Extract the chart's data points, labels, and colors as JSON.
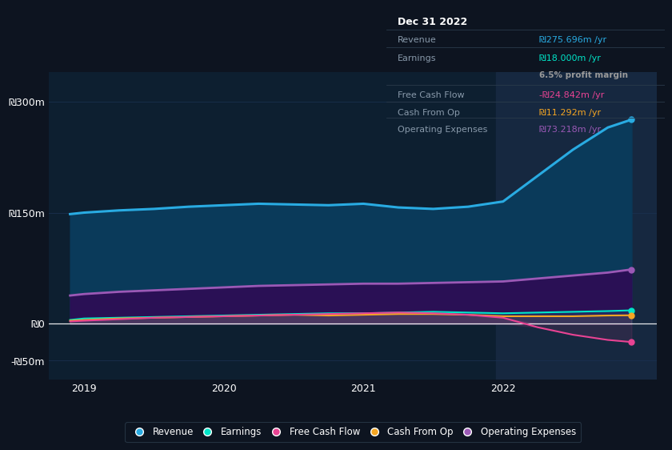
{
  "background_color": "#0d1420",
  "plot_bg_color": "#0d1f30",
  "grid_color": "#1a3050",
  "years": [
    2018.9,
    2019.0,
    2019.25,
    2019.5,
    2019.75,
    2020.0,
    2020.25,
    2020.5,
    2020.75,
    2021.0,
    2021.25,
    2021.5,
    2021.75,
    2022.0,
    2022.25,
    2022.5,
    2022.75,
    2022.92
  ],
  "revenue": [
    148,
    150,
    153,
    155,
    158,
    160,
    162,
    161,
    160,
    162,
    157,
    155,
    158,
    165,
    200,
    235,
    265,
    275.696
  ],
  "earnings": [
    5,
    7,
    8,
    9,
    10,
    11,
    12,
    13,
    14,
    14,
    15,
    16,
    15,
    14,
    15,
    16,
    17,
    18.0
  ],
  "free_cash_flow": [
    3,
    4,
    6,
    8,
    9,
    10,
    11,
    12,
    13,
    14,
    15,
    14,
    12,
    8,
    -5,
    -15,
    -22,
    -24.842
  ],
  "cash_from_op": [
    4,
    5,
    7,
    8,
    9,
    10,
    11,
    12,
    11,
    12,
    13,
    13,
    12,
    10,
    10,
    10,
    11,
    11.292
  ],
  "operating_expenses": [
    38,
    40,
    43,
    45,
    47,
    49,
    51,
    52,
    53,
    54,
    54,
    55,
    56,
    57,
    61,
    65,
    69,
    73.218
  ],
  "revenue_color": "#29abe2",
  "earnings_color": "#00e5c8",
  "free_cash_flow_color": "#e84393",
  "cash_from_op_color": "#f5a623",
  "operating_expenses_color": "#9b59b6",
  "revenue_fill_color": "#0a3a5a",
  "operating_fill_color": "#2a1055",
  "highlight_color": "#162840",
  "ytick_positions": [
    -50,
    0,
    150,
    300
  ],
  "ylabels": [
    "-₪50m",
    "₪0",
    "₪150m",
    "₪300m"
  ],
  "ylim": [
    -75,
    340
  ],
  "xlim": [
    2018.75,
    2023.1
  ],
  "xticks": [
    2019,
    2020,
    2021,
    2022
  ],
  "highlight_x": 2021.95,
  "tooltip_title": "Dec 31 2022",
  "tooltip_label_color": "#8899aa",
  "tooltip_revenue_val": "₪275.696m /yr",
  "tooltip_earnings_val": "₪18.000m /yr",
  "tooltip_margin_val": "6.5% profit margin",
  "tooltip_fcf_val": "-₪24.842m /yr",
  "tooltip_cfop_val": "₪11.292m /yr",
  "tooltip_opex_val": "₪73.218m /yr",
  "tooltip_bg": "#080e18",
  "tooltip_border": "#2a3a4a"
}
